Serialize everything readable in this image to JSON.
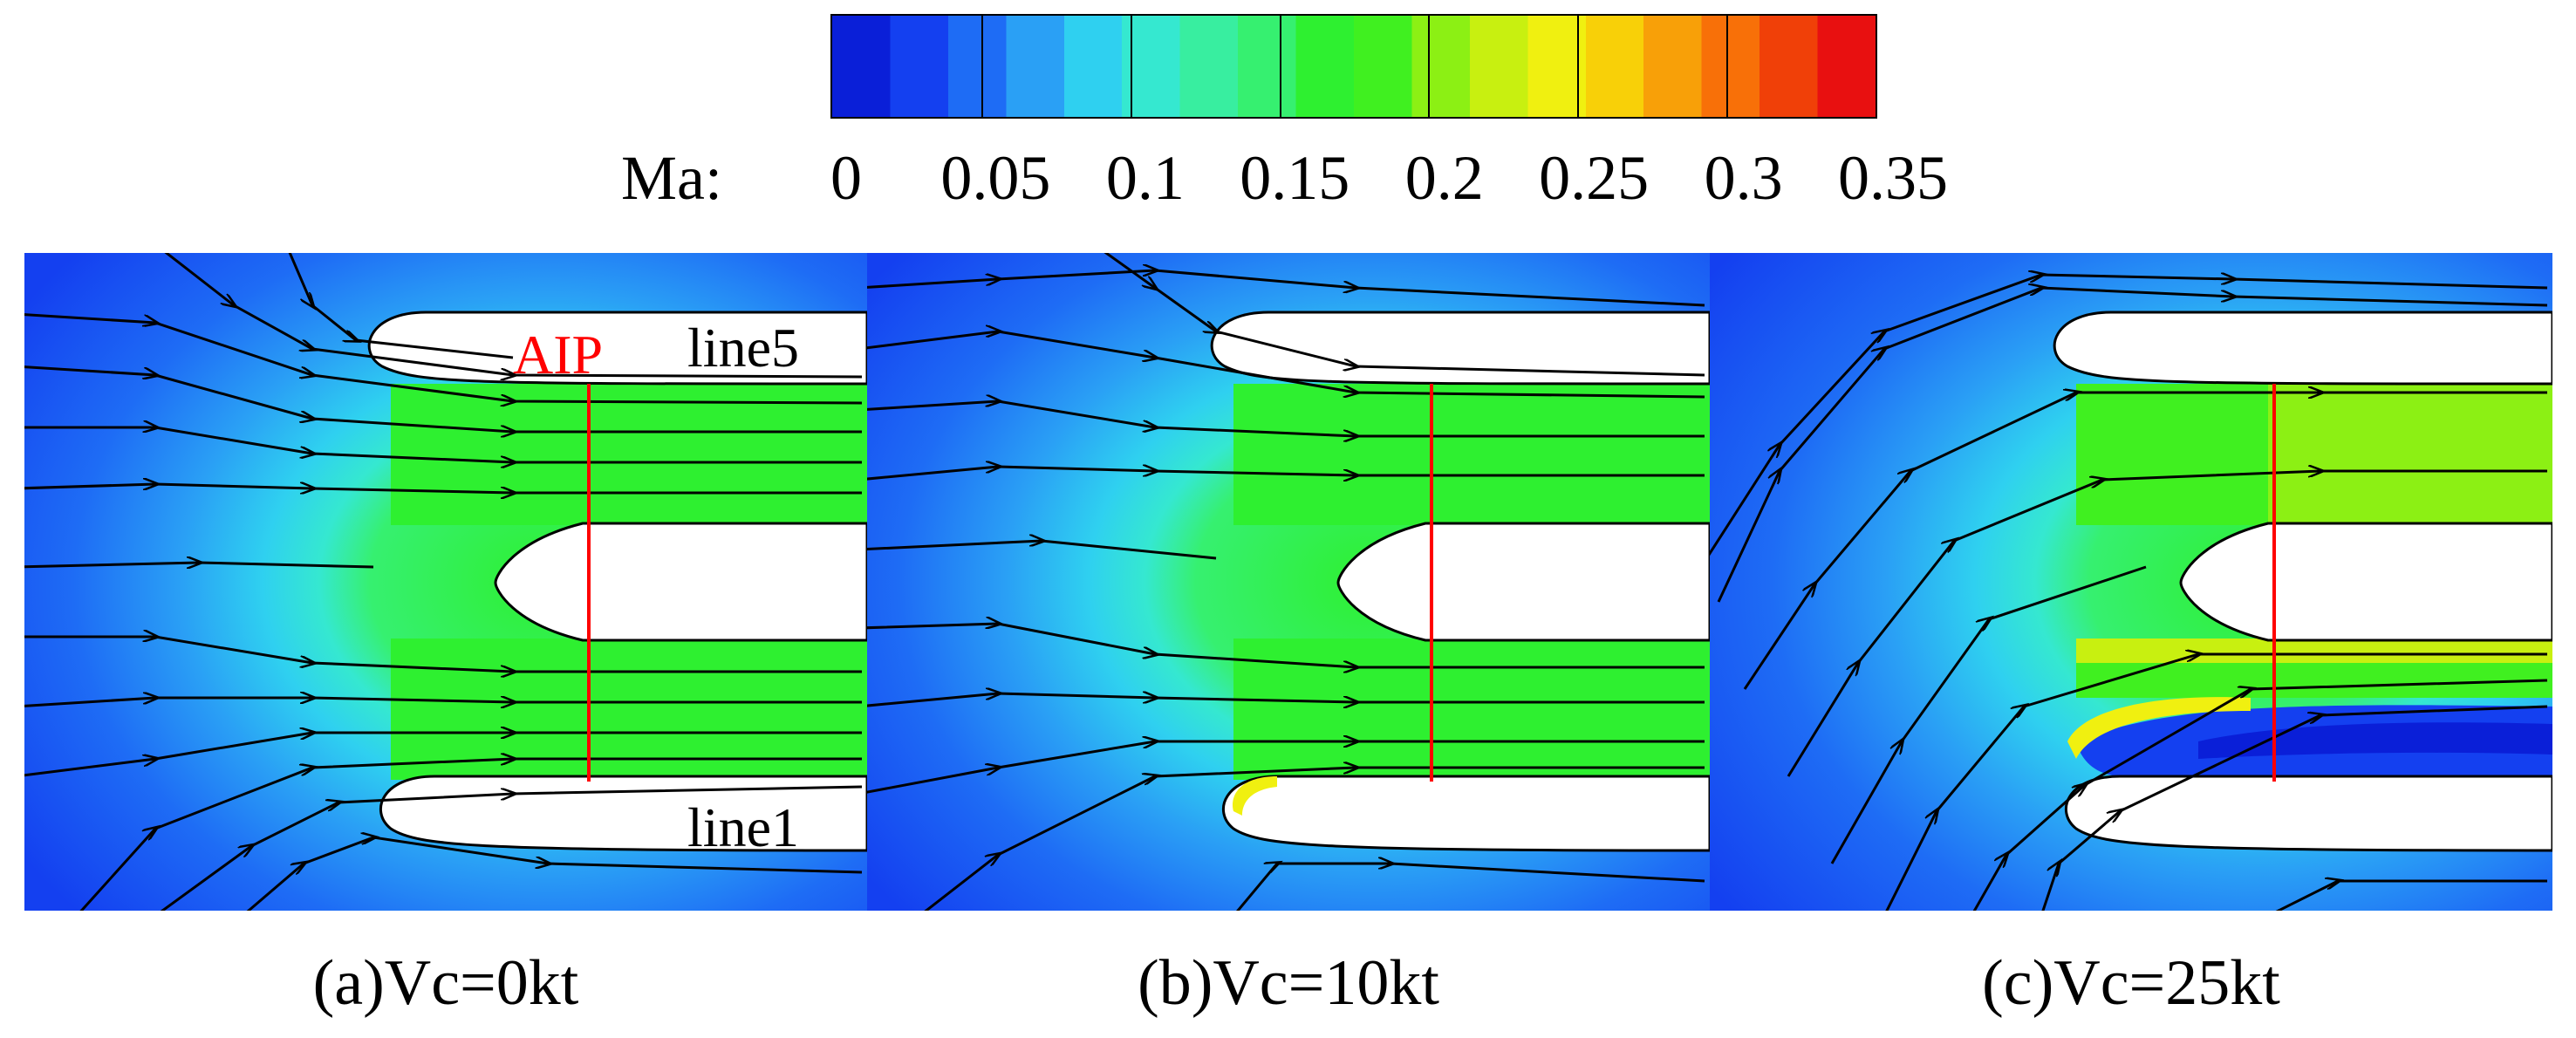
{
  "colorbar": {
    "label": "Ma:",
    "ticks": [
      "0",
      "0.05",
      "0.1",
      "0.15",
      "0.2",
      "0.25",
      "0.3",
      "0.35"
    ],
    "range": [
      0,
      0.35
    ],
    "colors": [
      "#0a1fd8",
      "#1440f0",
      "#1e6cf5",
      "#2aa0f5",
      "#2fd0f0",
      "#35e8d0",
      "#38eea0",
      "#36f070",
      "#2ef030",
      "#40f020",
      "#8cf014",
      "#c8f010",
      "#f0f010",
      "#f8d008",
      "#f8a008",
      "#f87008",
      "#f04008",
      "#e81010"
    ]
  },
  "annotations": {
    "aip": "AIP",
    "line5": "line5",
    "line1": "line1"
  },
  "panels": [
    {
      "caption": "(a)Vc=0kt",
      "crosswind_speed": 0
    },
    {
      "caption": "(b)Vc=10kt",
      "crosswind_speed": 10
    },
    {
      "caption": "(c)Vc=25kt",
      "crosswind_speed": 25
    }
  ]
}
